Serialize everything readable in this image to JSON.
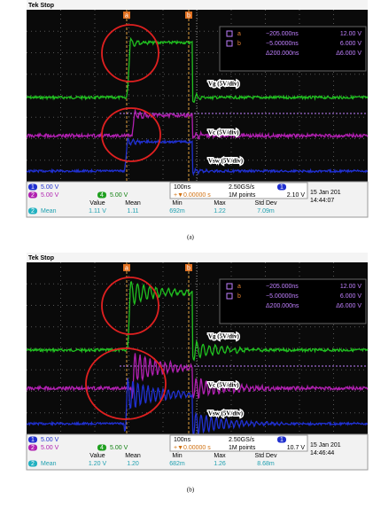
{
  "panels": [
    {
      "status": "Tek Stop",
      "markers": [
        "a",
        "b"
      ],
      "cursor": {
        "a_time": "−205.000ns",
        "a_volt": "12.00 V",
        "b_time": "−5.00000ns",
        "b_volt": "6.000 V",
        "d_time": "Δ200.000ns",
        "d_volt": "Δ6.000 V"
      },
      "labels": [
        "Vg (5V/div)",
        "Vc (5V/div)",
        "Vsw (5V/div)"
      ],
      "channels": [
        {
          "id": "1",
          "scale": "5.00 V"
        },
        {
          "id": "2",
          "scale": "5.00 V"
        },
        {
          "id": "4",
          "scale": "5.00 V"
        }
      ],
      "timebase": "100ns",
      "trigger_pos": "+▼0.00000 s",
      "sample_rate": "2.50GS/s",
      "record": "1M points",
      "trigger_level": "2.10 V",
      "date": "15 Jan 201",
      "time": "14:44:07",
      "stats": {
        "headers": [
          "Value",
          "Mean",
          "Min",
          "Max",
          "Std Dev"
        ],
        "label": "Mean",
        "row": [
          "1.11 V",
          "1.11",
          "692m",
          "1.22",
          "7.09m"
        ]
      },
      "caption": "(a)"
    },
    {
      "status": "Tek Stop",
      "markers": [
        "a",
        "b"
      ],
      "cursor": {
        "a_time": "−205.000ns",
        "a_volt": "12.00 V",
        "b_time": "−5.00000ns",
        "b_volt": "6.000 V",
        "d_time": "Δ200.000ns",
        "d_volt": "Δ6.000 V"
      },
      "labels": [
        "Vg (5V/div)",
        "Vc (5V/div)",
        "Vsw (5V/div)"
      ],
      "channels": [
        {
          "id": "1",
          "scale": "5.00 V"
        },
        {
          "id": "2",
          "scale": "5.00 V"
        },
        {
          "id": "4",
          "scale": "5.00 V"
        }
      ],
      "timebase": "100ns",
      "trigger_pos": "+▼0.00000 s",
      "sample_rate": "2.50GS/s",
      "record": "1M points",
      "trigger_level": "10.7 V",
      "date": "15 Jan 201",
      "time": "14:46:44",
      "stats": {
        "headers": [
          "Value",
          "Mean",
          "Min",
          "Max",
          "Std Dev"
        ],
        "label": "Mean",
        "row": [
          "1.20 V",
          "1.20",
          "682m",
          "1.26",
          "8.68m"
        ]
      },
      "caption": "(b)"
    }
  ]
}
